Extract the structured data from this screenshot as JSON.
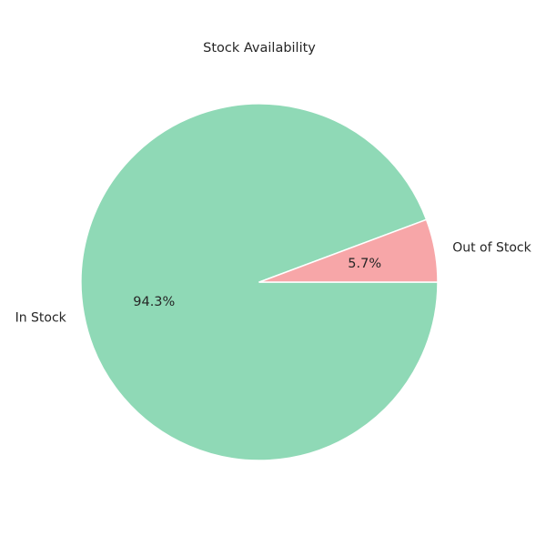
{
  "chart_data": {
    "type": "pie",
    "title": "Stock Availability",
    "categories": [
      "In Stock",
      "Out of Stock"
    ],
    "values": [
      94.3,
      5.7
    ],
    "percent_labels": [
      "94.3%",
      "5.7%"
    ],
    "colors": [
      "#8fd9b6",
      "#f7a6a8"
    ],
    "start_angle_deg": 0,
    "direction": "clockwise",
    "legend": "none"
  }
}
